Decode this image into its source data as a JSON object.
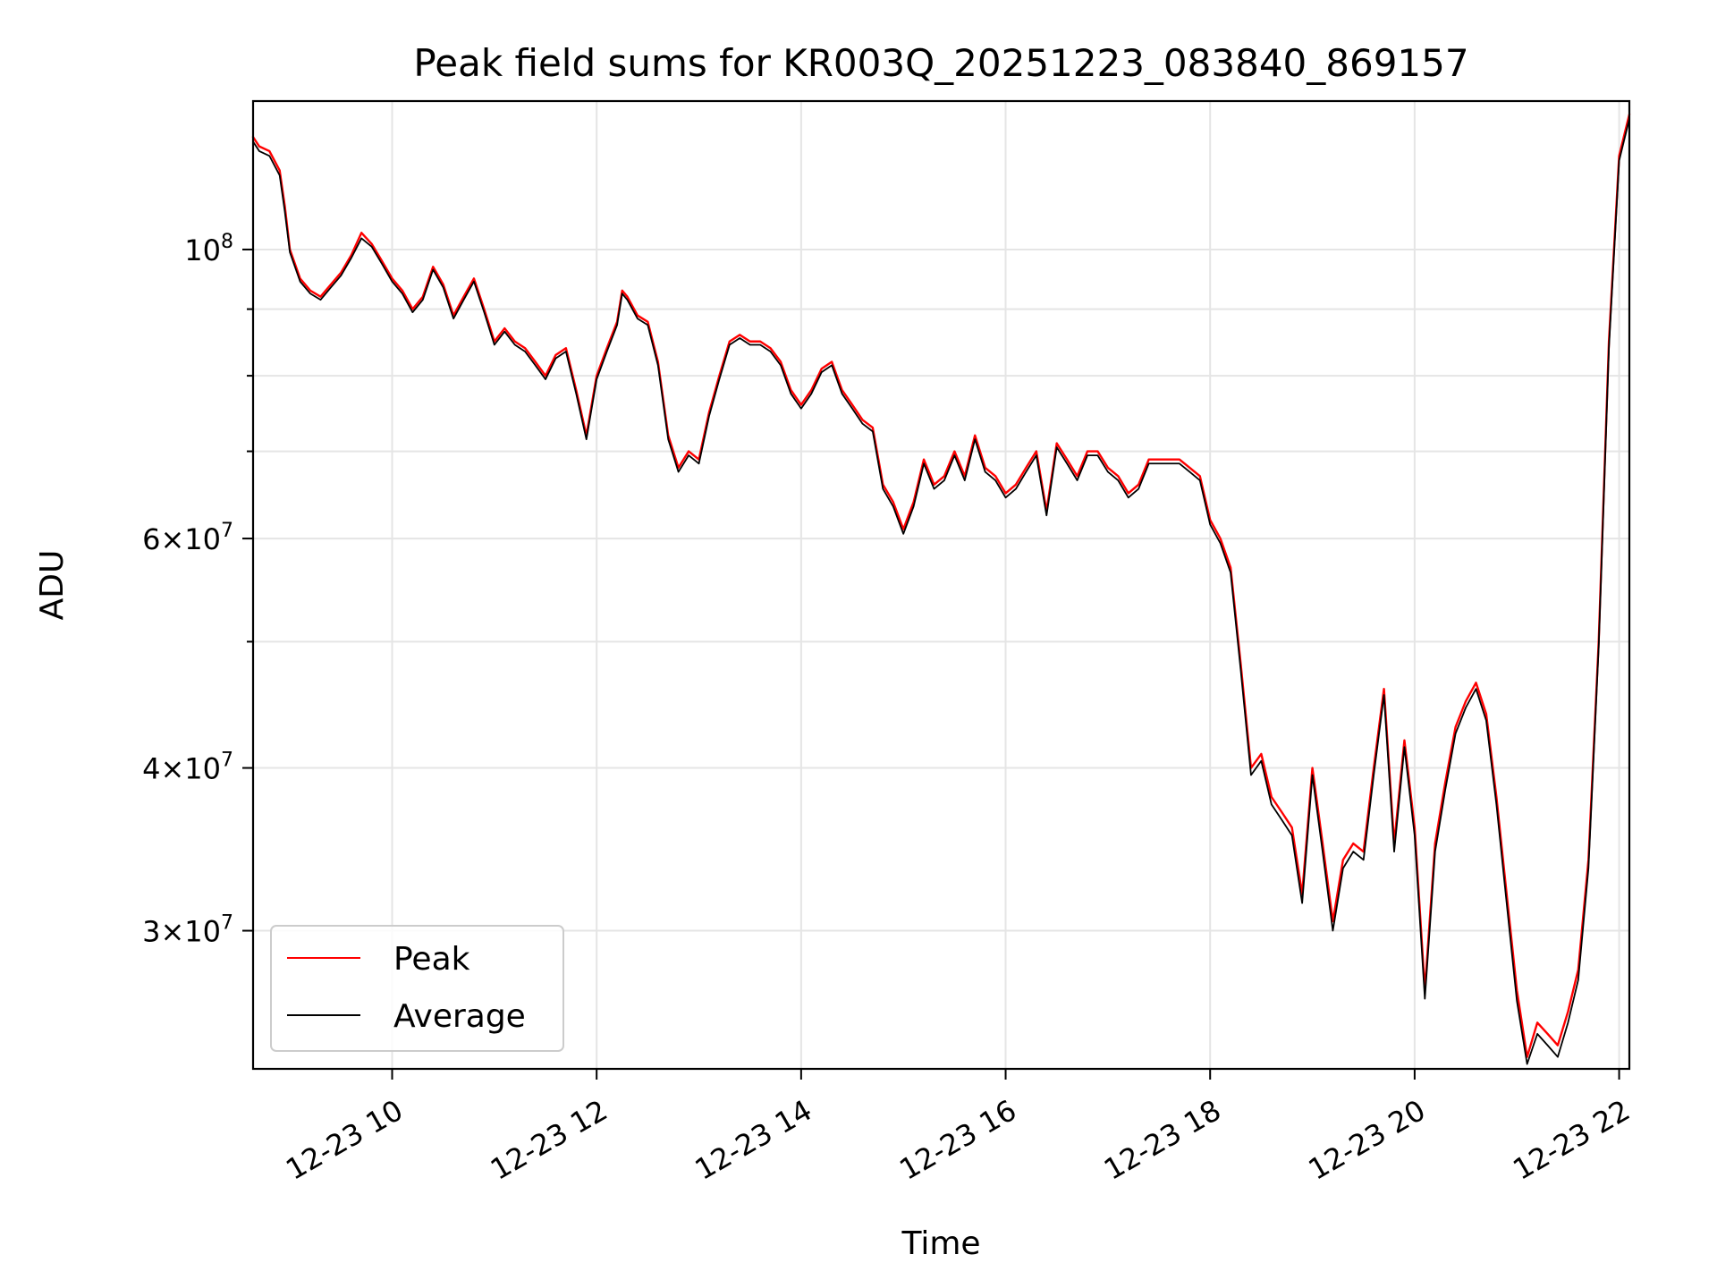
{
  "chart_data": {
    "type": "line",
    "title": "Peak field sums for KR003Q_20251223_083840_869157",
    "xlabel": "Time",
    "ylabel": "ADU",
    "y_scale": "log",
    "grid": true,
    "legend_position": "lower-left",
    "x_unit": "hours (decimal time of day, 2025-12-23)",
    "xlim": [
      8.64,
      22.1
    ],
    "ylim": [
      23500000,
      130000000
    ],
    "x_ticks": [
      {
        "value": 10,
        "label": "12-23 10"
      },
      {
        "value": 12,
        "label": "12-23 12"
      },
      {
        "value": 14,
        "label": "12-23 14"
      },
      {
        "value": 16,
        "label": "12-23 16"
      },
      {
        "value": 18,
        "label": "12-23 18"
      },
      {
        "value": 20,
        "label": "12-23 20"
      },
      {
        "value": 22,
        "label": "12-23 22"
      }
    ],
    "y_major_ticks": [
      {
        "value": 100000000,
        "base": "10",
        "exp": "8"
      },
      {
        "value": 60000000,
        "base": "6×10",
        "exp": "7"
      },
      {
        "value": 40000000,
        "base": "4×10",
        "exp": "7"
      },
      {
        "value": 30000000,
        "base": "3×10",
        "exp": "7"
      }
    ],
    "y_minor_ticks": [
      90000000,
      80000000,
      70000000,
      50000000
    ],
    "x": [
      8.64,
      8.7,
      8.8,
      8.9,
      8.95,
      9.0,
      9.1,
      9.2,
      9.3,
      9.4,
      9.5,
      9.6,
      9.7,
      9.8,
      9.9,
      10.0,
      10.1,
      10.2,
      10.3,
      10.4,
      10.5,
      10.6,
      10.7,
      10.8,
      10.9,
      11.0,
      11.1,
      11.2,
      11.3,
      11.4,
      11.5,
      11.6,
      11.7,
      11.8,
      11.9,
      12.0,
      12.1,
      12.2,
      12.25,
      12.3,
      12.4,
      12.5,
      12.6,
      12.7,
      12.8,
      12.9,
      13.0,
      13.1,
      13.2,
      13.3,
      13.4,
      13.5,
      13.6,
      13.7,
      13.8,
      13.9,
      14.0,
      14.1,
      14.2,
      14.3,
      14.4,
      14.5,
      14.6,
      14.7,
      14.8,
      14.9,
      15.0,
      15.1,
      15.2,
      15.3,
      15.4,
      15.5,
      15.6,
      15.7,
      15.8,
      15.9,
      16.0,
      16.1,
      16.2,
      16.3,
      16.4,
      16.5,
      16.6,
      16.7,
      16.8,
      16.9,
      17.0,
      17.1,
      17.2,
      17.3,
      17.4,
      17.5,
      17.6,
      17.7,
      17.8,
      17.9,
      18.0,
      18.1,
      18.2,
      18.3,
      18.4,
      18.5,
      18.6,
      18.7,
      18.8,
      18.9,
      19.0,
      19.1,
      19.2,
      19.3,
      19.4,
      19.5,
      19.6,
      19.7,
      19.8,
      19.9,
      20.0,
      20.1,
      20.2,
      20.3,
      20.4,
      20.5,
      20.6,
      20.7,
      20.8,
      20.9,
      21.0,
      21.1,
      21.2,
      21.3,
      21.4,
      21.5,
      21.6,
      21.7,
      21.8,
      21.9,
      22.0,
      22.1
    ],
    "series": [
      {
        "name": "Peak",
        "color": "#ff0000",
        "values": [
          122000000,
          120000000,
          119000000,
          115000000,
          108000000,
          100000000,
          95000000,
          93000000,
          92000000,
          94000000,
          96000000,
          99000000,
          103000000,
          101000000,
          98000000,
          95000000,
          93000000,
          90000000,
          92000000,
          97000000,
          94000000,
          89000000,
          92000000,
          95000000,
          90000000,
          85000000,
          87000000,
          85000000,
          84000000,
          82000000,
          80000000,
          83000000,
          84000000,
          78000000,
          72000000,
          80000000,
          84000000,
          88000000,
          93000000,
          92000000,
          89000000,
          88000000,
          82000000,
          72000000,
          68000000,
          70000000,
          69000000,
          75000000,
          80000000,
          85000000,
          86000000,
          85000000,
          85000000,
          84000000,
          82000000,
          78000000,
          76000000,
          78000000,
          81000000,
          82000000,
          78000000,
          76000000,
          74000000,
          73000000,
          66000000,
          64000000,
          61000000,
          64000000,
          69000000,
          66000000,
          67000000,
          70000000,
          67000000,
          72000000,
          68000000,
          67000000,
          65000000,
          66000000,
          68000000,
          70000000,
          63000000,
          71000000,
          69000000,
          67000000,
          70000000,
          70000000,
          68000000,
          67000000,
          65000000,
          66000000,
          69000000,
          69000000,
          69000000,
          69000000,
          68000000,
          67000000,
          62000000,
          60000000,
          57000000,
          48000000,
          40000000,
          41000000,
          38000000,
          37000000,
          36000000,
          32000000,
          40000000,
          35000000,
          30500000,
          34000000,
          35000000,
          34500000,
          40000000,
          46000000,
          35000000,
          42000000,
          36000000,
          27000000,
          35000000,
          39000000,
          43000000,
          45000000,
          46500000,
          44000000,
          38000000,
          32000000,
          27000000,
          24000000,
          25500000,
          25000000,
          24500000,
          26000000,
          28000000,
          34000000,
          50000000,
          85000000,
          118000000,
          127000000
        ]
      },
      {
        "name": "Average",
        "color": "#000000",
        "values": [
          121000000,
          119000000,
          118000000,
          114000000,
          107000000,
          99500000,
          94500000,
          92500000,
          91500000,
          93500000,
          95500000,
          98500000,
          102000000,
          100500000,
          97500000,
          94500000,
          92500000,
          89500000,
          91500000,
          96500000,
          93500000,
          88500000,
          91500000,
          94500000,
          89500000,
          84500000,
          86500000,
          84500000,
          83500000,
          81500000,
          79500000,
          82500000,
          83500000,
          77500000,
          71500000,
          79500000,
          83500000,
          87500000,
          92500000,
          91500000,
          88500000,
          87500000,
          81500000,
          71500000,
          67500000,
          69500000,
          68500000,
          74500000,
          79500000,
          84500000,
          85500000,
          84500000,
          84500000,
          83500000,
          81500000,
          77500000,
          75500000,
          77500000,
          80500000,
          81500000,
          77500000,
          75500000,
          73500000,
          72500000,
          65500000,
          63500000,
          60500000,
          63500000,
          68500000,
          65500000,
          66500000,
          69500000,
          66500000,
          71500000,
          67500000,
          66500000,
          64500000,
          65500000,
          67500000,
          69500000,
          62500000,
          70500000,
          68500000,
          66500000,
          69500000,
          69500000,
          67500000,
          66500000,
          64500000,
          65500000,
          68500000,
          68500000,
          68500000,
          68500000,
          67500000,
          66500000,
          61500000,
          59500000,
          56500000,
          47500000,
          39500000,
          40500000,
          37500000,
          36500000,
          35500000,
          31500000,
          39500000,
          34500000,
          30000000,
          33500000,
          34500000,
          34000000,
          39500000,
          45500000,
          34500000,
          41500000,
          35500000,
          26600000,
          34500000,
          38500000,
          42500000,
          44500000,
          46000000,
          43500000,
          37500000,
          31500000,
          26500000,
          23700000,
          25000000,
          24500000,
          24000000,
          25500000,
          27500000,
          33500000,
          49500000,
          84000000,
          117000000,
          126000000
        ]
      }
    ]
  }
}
